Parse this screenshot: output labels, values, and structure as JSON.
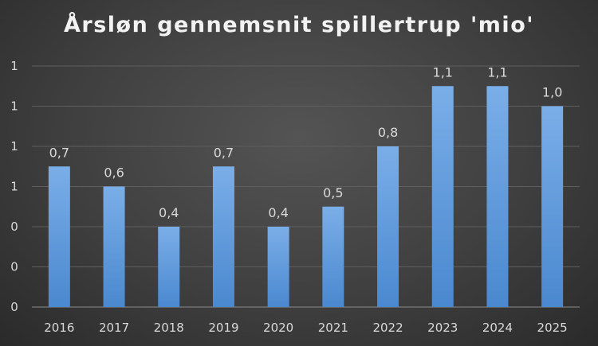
{
  "chart_data": {
    "type": "bar",
    "title": "Årsløn gennemsnit spillertrup 'mio'",
    "xlabel": "",
    "ylabel": "",
    "categories": [
      "2016",
      "2017",
      "2018",
      "2019",
      "2020",
      "2021",
      "2022",
      "2023",
      "2024",
      "2025"
    ],
    "values": [
      0.7,
      0.6,
      0.4,
      0.7,
      0.4,
      0.5,
      0.8,
      1.1,
      1.1,
      1.0
    ],
    "data_labels": [
      "0,7",
      "0,6",
      "0,4",
      "0,7",
      "0,4",
      "0,5",
      "0,8",
      "1,1",
      "1,1",
      "1,0"
    ],
    "ylim": [
      0,
      1.2
    ],
    "y_ticks": [
      {
        "value": 0,
        "label": "0"
      },
      {
        "value": 0.2,
        "label": "0"
      },
      {
        "value": 0.4,
        "label": "0"
      },
      {
        "value": 0.6,
        "label": "1"
      },
      {
        "value": 0.8,
        "label": "1"
      },
      {
        "value": 1.0,
        "label": "1"
      },
      {
        "value": 1.2,
        "label": "1"
      }
    ],
    "grid": true,
    "legend": "none",
    "colors": {
      "bar_top": "#7aaee8",
      "bar_bottom": "#4a88cf",
      "background": "#404040"
    }
  }
}
